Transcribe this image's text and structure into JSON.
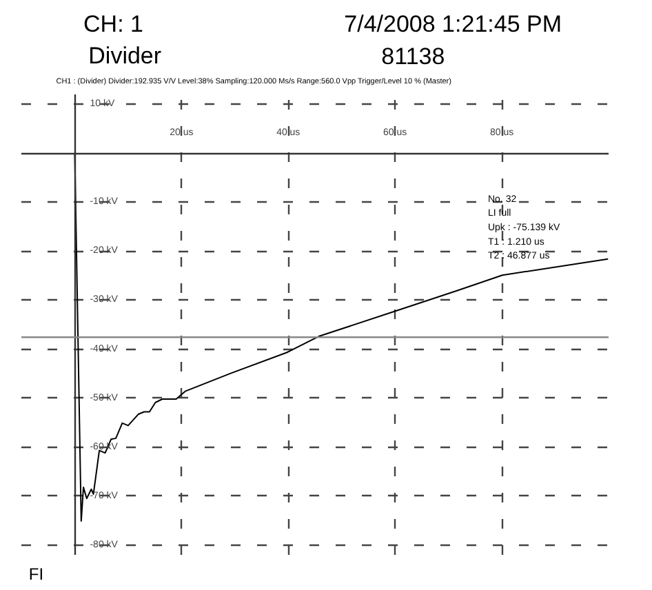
{
  "chart_data": {
    "type": "line",
    "title": "CH: 1",
    "subtitle": "Divider",
    "annotations": [
      "7/4/2008 1:21:45 PM",
      "81138",
      "CH1 : (Divider) Divider:192.935 V/V Level:38% Sampling:120.000 Ms/s Range:560.0 Vpp Trigger/Level 10 % (Master)",
      "No. 32",
      "LI full",
      "Upk : -75.139 kV",
      "T1 : 1.210 us",
      "T2 : 46.877 us",
      "FI"
    ],
    "x": [
      0,
      1.21,
      1.63,
      2.24,
      3.1,
      3.5,
      4.6,
      5.7,
      6.8,
      7.7,
      8.9,
      10.0,
      11.9,
      13.0,
      14.0,
      15.1,
      16.4,
      19.0,
      20.7,
      29.3,
      39.7,
      45.7,
      59.9,
      71.5,
      80.1,
      99.9
    ],
    "series": [
      {
        "color": "#000000",
        "values": [
          0,
          -75.1,
          -68.2,
          -70.5,
          -68.6,
          -69.6,
          -60.7,
          -61.2,
          -58.4,
          -58.2,
          -55.1,
          -55.6,
          -53.3,
          -52.8,
          -52.8,
          -50.9,
          -50.2,
          -50.2,
          -48.6,
          -44.9,
          -40.7,
          -37.4,
          -32.3,
          -28.1,
          -24.9,
          -21.6
        ]
      }
    ],
    "xlim": [
      -10,
      100
    ],
    "ylim": [
      -82,
      12
    ],
    "xticks": [
      {
        "value": 20,
        "label": "20 us"
      },
      {
        "value": 40,
        "label": "40 us"
      },
      {
        "value": 60,
        "label": "60 us"
      },
      {
        "value": 80,
        "label": "80 us"
      }
    ],
    "yticks": [
      {
        "value": 10,
        "label": "10 kV"
      },
      {
        "value": -10,
        "label": "-10 kV"
      },
      {
        "value": -20,
        "label": "-20 kV"
      },
      {
        "value": -30,
        "label": "-30 kV"
      },
      {
        "value": -40,
        "label": "-40 kV"
      },
      {
        "value": -50,
        "label": "-50 kV"
      },
      {
        "value": -60,
        "label": "-60 kV"
      },
      {
        "value": -70,
        "label": "-70 kV"
      },
      {
        "value": -80,
        "label": "-80 kV"
      }
    ],
    "ref_lines": [
      {
        "axis": "y",
        "value": -37.57,
        "color": "#888888"
      }
    ],
    "grid": true,
    "marker": "none",
    "line_style": "solid"
  }
}
